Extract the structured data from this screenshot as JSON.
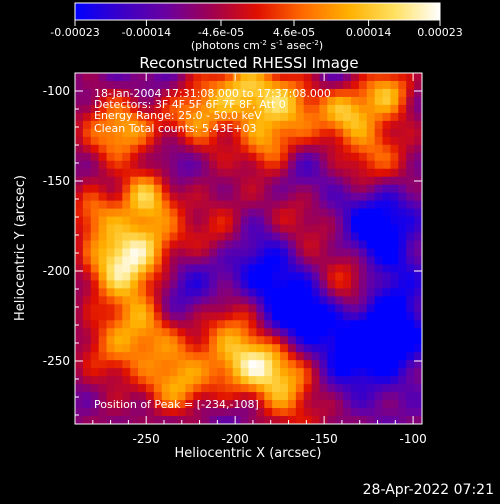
{
  "colorbar": {
    "ticks": [
      "-0.00023",
      "-0.00014",
      "-4.6e-05",
      "4.6e-05",
      "0.00014",
      "0.00023"
    ],
    "tick_values": [
      -0.00023,
      -0.00014,
      -4.6e-05,
      4.6e-05,
      0.00014,
      0.00023
    ],
    "range": [
      -0.00023,
      0.00023
    ],
    "unit_text": "(photons cm",
    "unit_sup1": "-2",
    "unit_mid1": " s",
    "unit_sup2": "-1",
    "unit_mid2": " asec",
    "unit_sup3": "-2",
    "unit_end": ")",
    "colormap": [
      "#0000ff",
      "#3a00c8",
      "#6a00a0",
      "#a00050",
      "#e01000",
      "#ff6a00",
      "#ffb000",
      "#ffe060",
      "#ffffff"
    ]
  },
  "chart_data": {
    "type": "heatmap",
    "title": "Reconstructed RHESSI Image",
    "xlabel": "Heliocentric X (arcsec)",
    "ylabel": "Heliocentric Y (arcsec)",
    "x_ticks": [
      "-250",
      "-200",
      "-150",
      "-100"
    ],
    "x_tick_values": [
      -250,
      -200,
      -150,
      -100
    ],
    "y_ticks": [
      "-100",
      "-150",
      "-200",
      "-250"
    ],
    "y_tick_values": [
      -100,
      -150,
      -200,
      -250
    ],
    "xlim": [
      -290,
      -95
    ],
    "ylim": [
      -285,
      -90
    ],
    "annotations": [
      "18-Jan-2004 17:31:08.000 to 17:37:08.000",
      "Detectors: 3F 4F 5F 6F 7F 8F, Att 0",
      "Energy Range: 25.0 - 50.0 keV",
      "Clean    Total counts: 5.43E+03"
    ],
    "peak_label": "Position of Peak = [-234,-108]",
    "peak_position": [
      -234,
      -108
    ]
  },
  "footer": {
    "date": "28-Apr-2022 07:21"
  }
}
